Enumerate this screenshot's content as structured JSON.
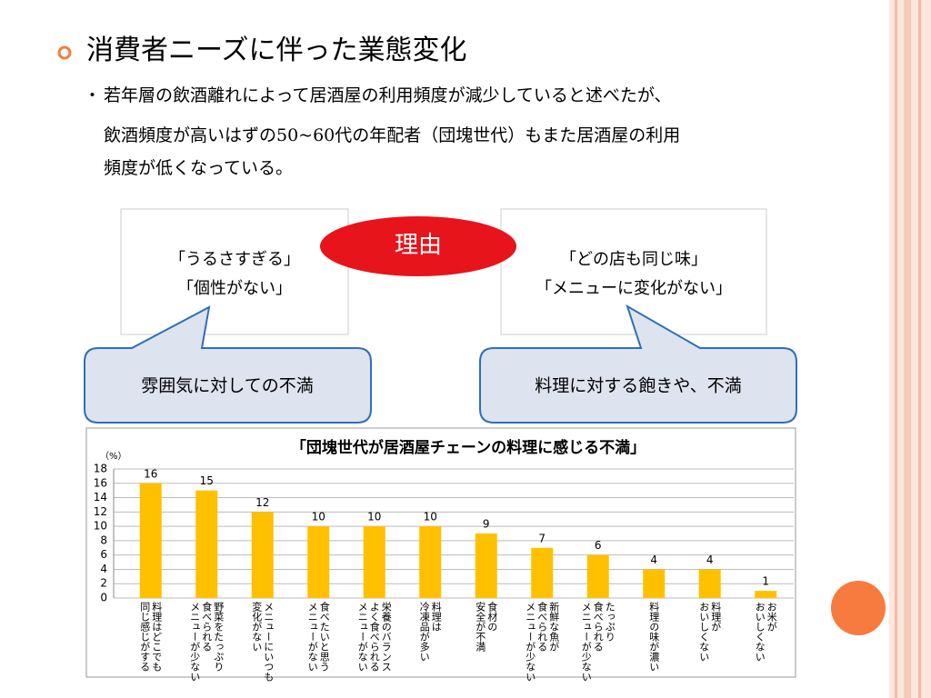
{
  "title": "消費者ニーズに伴った業態変化",
  "body": {
    "bullet": "・",
    "lines": [
      "若年層の飲酒離れによって居酒屋の利用頻度が減少していると述べたが、",
      "飲酒頻度が高いはずの50~60代の年配者（団塊世代）もまた居酒屋の利用",
      "頻度が低くなっている。"
    ]
  },
  "boxes": [
    {
      "lines": [
        "「うるさすぎる」",
        "「個性がない」"
      ]
    },
    {
      "lines": [
        "「どの店も同じ味」",
        "「メニューに変化がない」"
      ]
    }
  ],
  "reason": "理由",
  "callouts": [
    "雰囲気に対しての不満",
    "料理に対する飽きや、不満"
  ],
  "chart_data": {
    "type": "bar",
    "title": "「団塊世代が居酒屋チェーンの料理に感じる不満」",
    "y_unit": "（%）",
    "categories": [
      "料理はどこでも\n同じ感じがする",
      "野菜をたっぷり\n食べられる\nメニューが少ない",
      "メニューにいつも\n変化がない",
      "食べたいと思う\nメニューがない",
      "栄養のバランス\nよく食べられる\nメニューがない",
      "料理は\n冷凍品が多い",
      "食材の\n安全が不満",
      "新鮮な魚が\n食べられる\nメニューが少ない",
      "たっぷり\n食べられる\nメニューが少ない",
      "料理の味が濃い",
      "料理が\nおいしくない",
      "お米が\nおいしくない"
    ],
    "values": [
      16,
      15,
      12,
      10,
      10,
      10,
      9,
      7,
      6,
      4,
      4,
      1
    ],
    "color": "#ffc000",
    "ylim": [
      0,
      18
    ],
    "yticks": [
      0,
      2,
      4,
      6,
      8,
      10,
      12,
      14,
      16,
      18
    ],
    "grid": true
  }
}
